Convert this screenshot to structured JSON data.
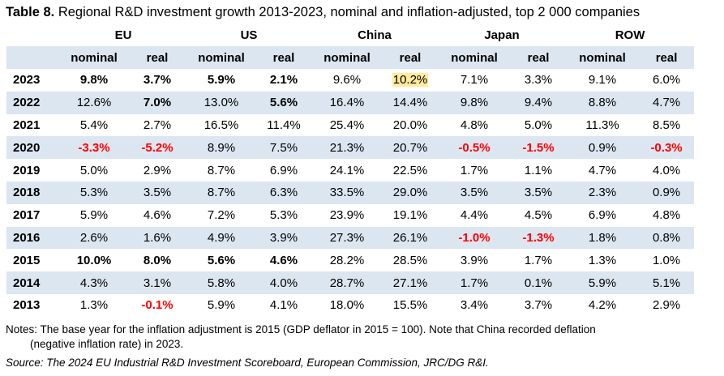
{
  "title": {
    "label": "Table 8.",
    "text": "Regional R&D investment growth 2013-2023, nominal and inflation-adjusted, top 2 000 companies"
  },
  "regions": [
    "EU",
    "US",
    "China",
    "Japan",
    "ROW"
  ],
  "subheaders": [
    "nominal",
    "real",
    "nominal",
    "real",
    "nominal",
    "real",
    "nominal",
    "real",
    "nominal",
    "real"
  ],
  "rows": [
    {
      "year": "2023",
      "cells": [
        "9.8%",
        "3.7%",
        "5.9%",
        "2.1%",
        "9.6%",
        "10.2%",
        "7.1%",
        "3.3%",
        "9.1%",
        "6.0%"
      ]
    },
    {
      "year": "2022",
      "cells": [
        "12.6%",
        "7.0%",
        "13.0%",
        "5.6%",
        "16.4%",
        "14.4%",
        "9.8%",
        "9.4%",
        "8.8%",
        "4.7%"
      ]
    },
    {
      "year": "2021",
      "cells": [
        "5.4%",
        "2.7%",
        "16.5%",
        "11.4%",
        "25.4%",
        "20.0%",
        "4.8%",
        "5.0%",
        "11.3%",
        "8.5%"
      ]
    },
    {
      "year": "2020",
      "cells": [
        "-3.3%",
        "-5.2%",
        "8.9%",
        "7.5%",
        "21.3%",
        "20.7%",
        "-0.5%",
        "-1.5%",
        "0.9%",
        "-0.3%"
      ]
    },
    {
      "year": "2019",
      "cells": [
        "5.0%",
        "2.9%",
        "8.7%",
        "6.9%",
        "24.1%",
        "22.5%",
        "1.7%",
        "1.1%",
        "4.7%",
        "4.0%"
      ]
    },
    {
      "year": "2018",
      "cells": [
        "5.3%",
        "3.5%",
        "8.7%",
        "6.3%",
        "33.5%",
        "29.0%",
        "3.5%",
        "3.5%",
        "2.3%",
        "0.9%"
      ]
    },
    {
      "year": "2017",
      "cells": [
        "5.9%",
        "4.6%",
        "7.2%",
        "5.3%",
        "23.9%",
        "19.1%",
        "4.4%",
        "4.5%",
        "6.9%",
        "4.8%"
      ]
    },
    {
      "year": "2016",
      "cells": [
        "2.6%",
        "1.6%",
        "4.9%",
        "3.9%",
        "27.3%",
        "26.1%",
        "-1.0%",
        "-1.3%",
        "1.8%",
        "0.8%"
      ]
    },
    {
      "year": "2015",
      "cells": [
        "10.0%",
        "8.0%",
        "5.6%",
        "4.6%",
        "28.2%",
        "28.5%",
        "3.9%",
        "1.7%",
        "1.3%",
        "1.0%"
      ]
    },
    {
      "year": "2014",
      "cells": [
        "4.3%",
        "3.1%",
        "5.8%",
        "4.0%",
        "28.7%",
        "27.1%",
        "1.7%",
        "0.1%",
        "5.9%",
        "5.1%"
      ]
    },
    {
      "year": "2013",
      "cells": [
        "1.3%",
        "-0.1%",
        "5.9%",
        "4.1%",
        "18.0%",
        "15.5%",
        "3.4%",
        "3.7%",
        "4.2%",
        "2.9%"
      ]
    }
  ],
  "notes": {
    "line1": "Notes: The base year for the inflation adjustment is 2015 (GDP deflator in 2015 = 100). Note that China recorded deflation",
    "line2": "(negative inflation rate) in 2023."
  },
  "source": "Source: The 2024 EU Industrial R&D Investment Scoreboard, European Commission, JRC/DG R&I."
}
